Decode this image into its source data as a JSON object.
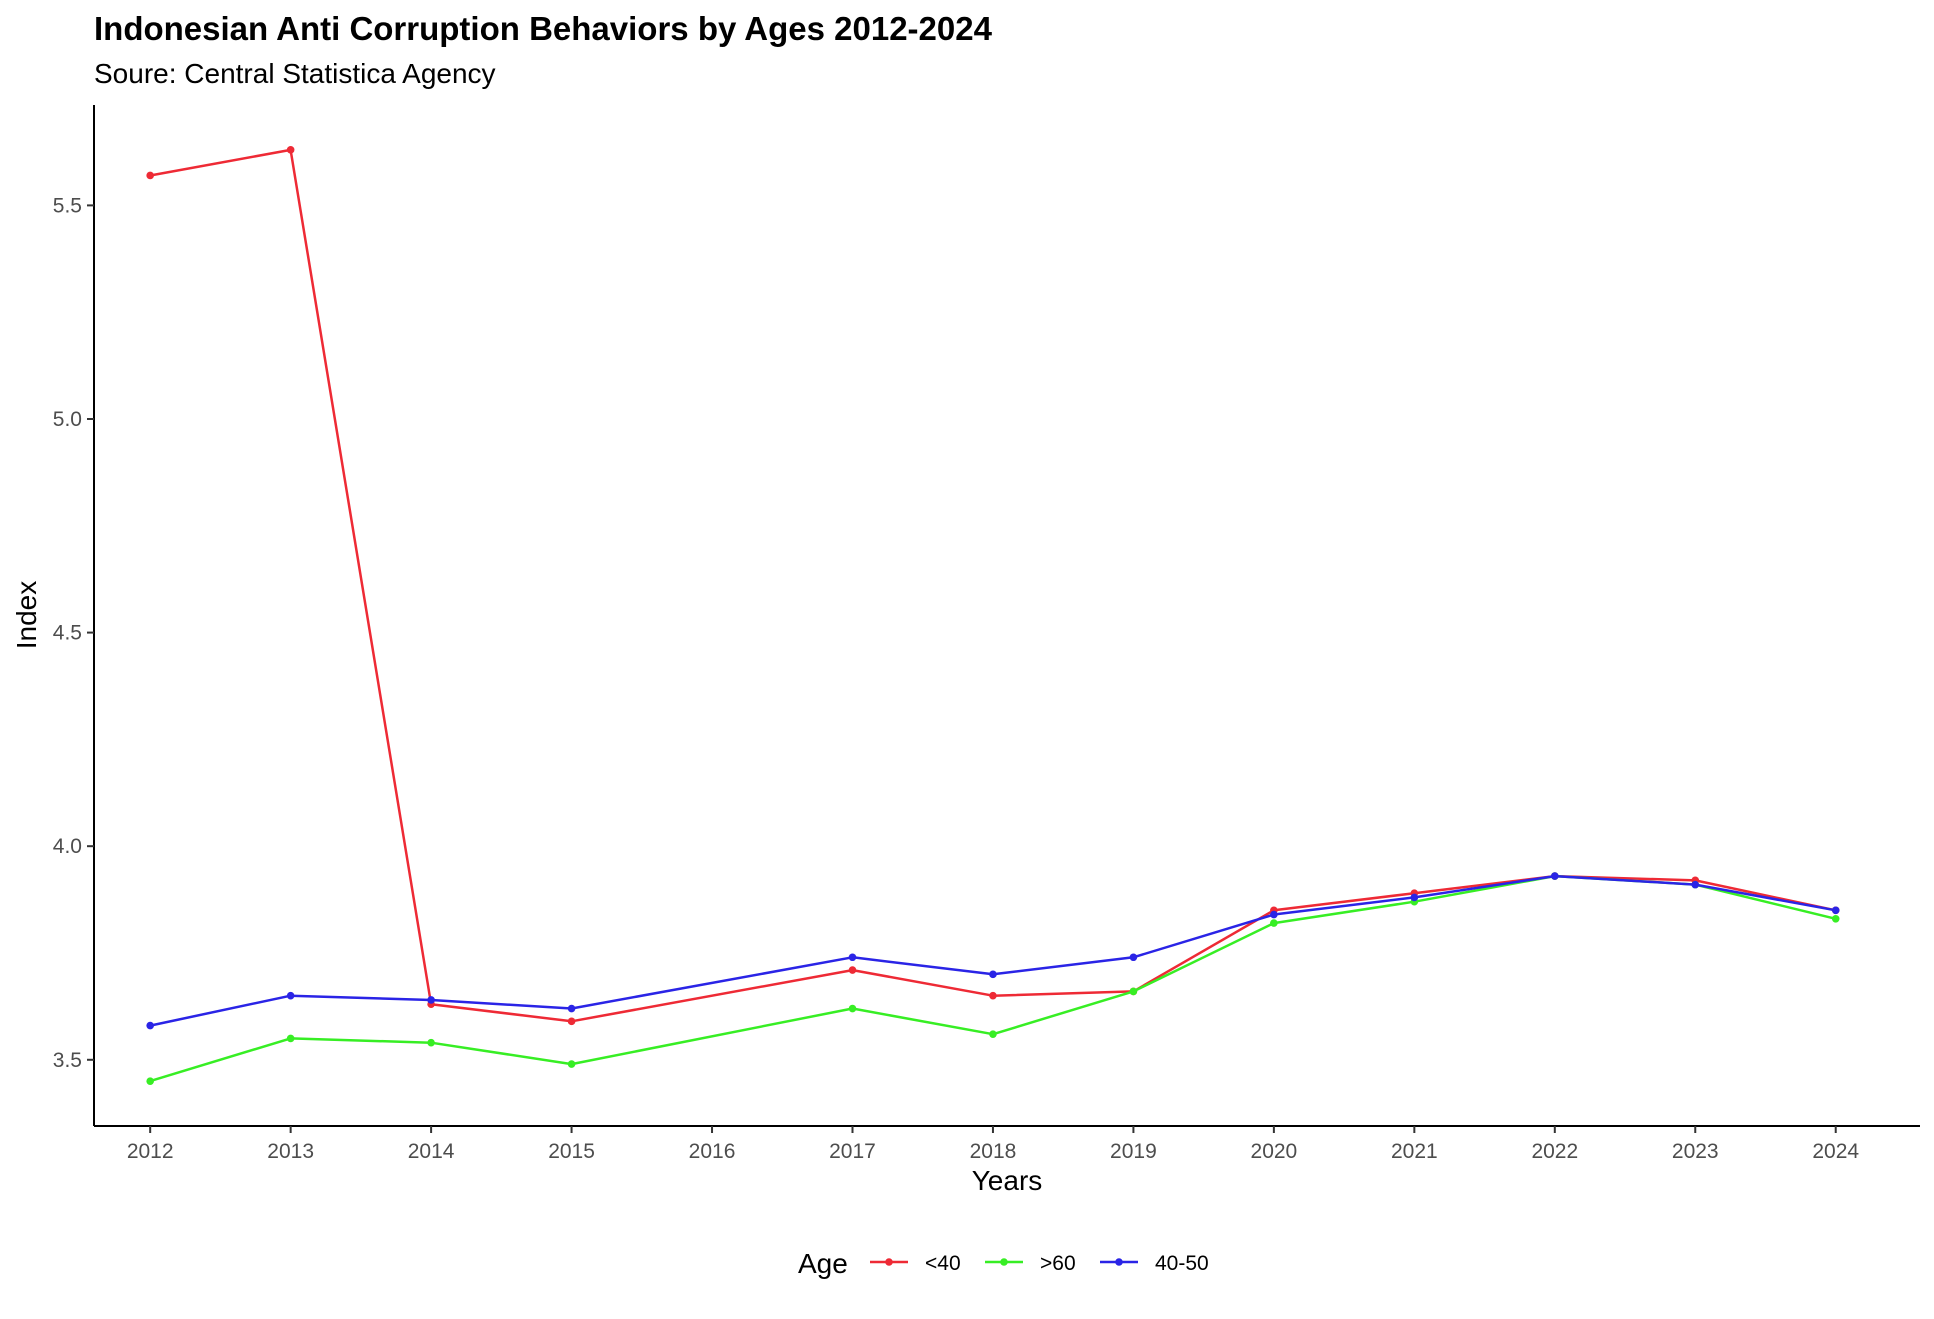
{
  "chart_data": {
    "type": "line",
    "title": "Indonesian Anti Corruption Behaviors by Ages 2012-2024",
    "subtitle": "Soure: Central Statistica Agency",
    "xlabel": "Years",
    "ylabel": "Index",
    "x_ticks": [
      "2012",
      "2013",
      "2014",
      "2015",
      "2016",
      "2017",
      "2018",
      "2019",
      "2020",
      "2021",
      "2022",
      "2023",
      "2024"
    ],
    "y_ticks": [
      "3.5",
      "4.0",
      "4.5",
      "5.0",
      "5.5"
    ],
    "xlim": [
      2011.6,
      2024.6
    ],
    "ylim": [
      3.345,
      5.735
    ],
    "grid": false,
    "legend": {
      "title": "Age",
      "position": "bottom"
    },
    "series": [
      {
        "name": "<40",
        "color": "#ee2a35",
        "x": [
          2012,
          2013,
          2014,
          2015,
          2017,
          2018,
          2019,
          2020,
          2021,
          2022,
          2023,
          2024
        ],
        "values": [
          5.57,
          5.63,
          3.63,
          3.59,
          3.71,
          3.65,
          3.66,
          3.85,
          3.89,
          3.93,
          3.92,
          3.85
        ]
      },
      {
        "name": ">60",
        "color": "#37ee24",
        "x": [
          2012,
          2013,
          2014,
          2015,
          2017,
          2018,
          2019,
          2020,
          2021,
          2022,
          2023,
          2024
        ],
        "values": [
          3.45,
          3.55,
          3.54,
          3.49,
          3.62,
          3.56,
          3.66,
          3.82,
          3.87,
          3.93,
          3.91,
          3.83
        ]
      },
      {
        "name": "40-50",
        "color": "#2a24e6",
        "x": [
          2012,
          2013,
          2014,
          2015,
          2017,
          2018,
          2019,
          2020,
          2021,
          2022,
          2023,
          2024
        ],
        "values": [
          3.58,
          3.65,
          3.64,
          3.62,
          3.74,
          3.7,
          3.74,
          3.84,
          3.88,
          3.93,
          3.91,
          3.85
        ]
      }
    ]
  }
}
